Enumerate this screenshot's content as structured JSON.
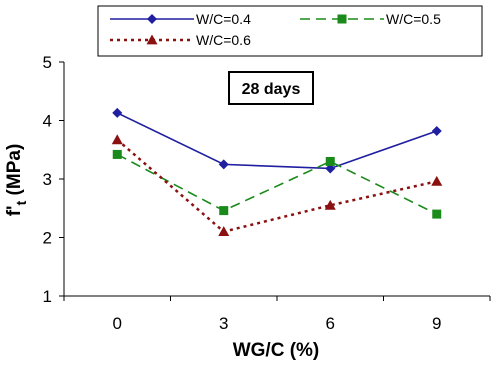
{
  "chart_data": {
    "type": "line",
    "title": "",
    "xlabel": "WG/C (%)",
    "ylabel": "f't (MPa)",
    "ylabel_main": "f'",
    "ylabel_sub": "t",
    "ylabel_unit": " (MPa)",
    "annotation": "28 days",
    "x": [
      0,
      3,
      6,
      9
    ],
    "x_ticks": [
      "0",
      "3",
      "6",
      "9"
    ],
    "ylim": [
      1,
      5
    ],
    "y_ticks": [
      "1",
      "2",
      "3",
      "4",
      "5"
    ],
    "grid": false,
    "legend_position": "top",
    "series": [
      {
        "name": "W/C=0.4",
        "values": [
          4.13,
          3.25,
          3.18,
          3.82
        ],
        "color": "#1f1fa0",
        "marker": "diamond",
        "dash": "solid"
      },
      {
        "name": "W/C=0.5",
        "values": [
          3.42,
          2.46,
          3.3,
          2.4
        ],
        "color": "#1a8a1a",
        "marker": "square",
        "dash": "long-dash"
      },
      {
        "name": "W/C=0.6",
        "values": [
          3.67,
          2.1,
          2.55,
          2.96
        ],
        "color": "#8b1010",
        "marker": "triangle",
        "dash": "dotted"
      }
    ]
  }
}
